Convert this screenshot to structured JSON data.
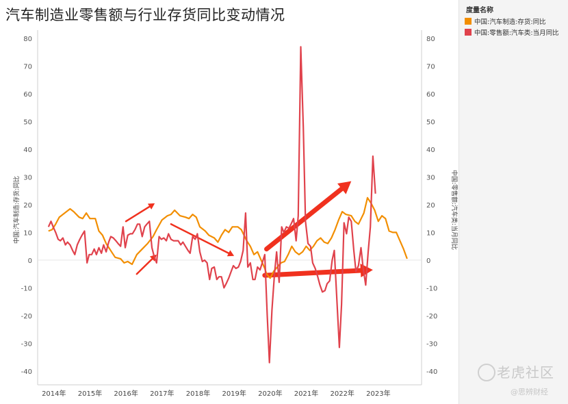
{
  "title": "汽车制造业零售额与行业存货同比变动情况",
  "legend": {
    "title": "度量名称",
    "items": [
      {
        "label": "中国:汽车制造:存货:同比",
        "color": "#F28E00"
      },
      {
        "label": "中国:零售额:汽车类:当月同比",
        "color": "#E0424C"
      }
    ]
  },
  "watermark": {
    "text": "老虎社区",
    "sub": "@思辨财经"
  },
  "chart_data": {
    "type": "line",
    "title": "汽车制造业零售额与行业存货同比变动情况",
    "ylabel_left": "中国:汽车制造:存货:同比",
    "ylabel_right": "中国:零售额:汽车类:当月同比",
    "ylim": [
      -45,
      83
    ],
    "yticks": [
      -40,
      -30,
      -20,
      -10,
      0,
      10,
      20,
      30,
      40,
      50,
      60,
      70,
      80
    ],
    "xlim": [
      2013.7,
      2024.35
    ],
    "xticks": [
      {
        "year": 2014,
        "label": "2014年"
      },
      {
        "year": 2015,
        "label": "2015年"
      },
      {
        "year": 2016,
        "label": "2016年"
      },
      {
        "year": 2017,
        "label": "2017年"
      },
      {
        "year": 2018,
        "label": "2018年"
      },
      {
        "year": 2019,
        "label": "2019年"
      },
      {
        "year": 2020,
        "label": "2020年"
      },
      {
        "year": 2021,
        "label": "2021年"
      },
      {
        "year": 2022,
        "label": "2022年"
      },
      {
        "year": 2023,
        "label": "2023年"
      }
    ],
    "grid": false,
    "legend_position": "right",
    "series": [
      {
        "name": "中国:汽车制造:存货:同比",
        "color": "#F28E00",
        "points": [
          [
            2014.0,
            10.5
          ],
          [
            2014.1,
            11
          ],
          [
            2014.2,
            13
          ],
          [
            2014.3,
            15.5
          ],
          [
            2014.45,
            17
          ],
          [
            2014.6,
            18.5
          ],
          [
            2014.7,
            17.5
          ],
          [
            2014.85,
            15.5
          ],
          [
            2014.95,
            15
          ],
          [
            2015.05,
            17
          ],
          [
            2015.15,
            15
          ],
          [
            2015.3,
            15
          ],
          [
            2015.4,
            10.5
          ],
          [
            2015.5,
            9
          ],
          [
            2015.6,
            6
          ],
          [
            2015.75,
            3
          ],
          [
            2015.85,
            1
          ],
          [
            2016.0,
            0.5
          ],
          [
            2016.1,
            -1
          ],
          [
            2016.2,
            -0.5
          ],
          [
            2016.32,
            -1.5
          ],
          [
            2016.45,
            2
          ],
          [
            2016.6,
            4
          ],
          [
            2016.75,
            6
          ],
          [
            2016.9,
            8.5
          ],
          [
            2017.0,
            11
          ],
          [
            2017.15,
            14.5
          ],
          [
            2017.3,
            16
          ],
          [
            2017.4,
            16.5
          ],
          [
            2017.5,
            18
          ],
          [
            2017.65,
            16
          ],
          [
            2017.8,
            15.5
          ],
          [
            2017.9,
            15
          ],
          [
            2018.0,
            16.5
          ],
          [
            2018.1,
            15.5
          ],
          [
            2018.2,
            12
          ],
          [
            2018.35,
            10.5
          ],
          [
            2018.45,
            9
          ],
          [
            2018.6,
            8
          ],
          [
            2018.7,
            6.5
          ],
          [
            2018.8,
            9
          ],
          [
            2018.9,
            11
          ],
          [
            2019.0,
            10
          ],
          [
            2019.1,
            12
          ],
          [
            2019.25,
            12
          ],
          [
            2019.35,
            11
          ],
          [
            2019.5,
            7
          ],
          [
            2019.6,
            5
          ],
          [
            2019.7,
            2
          ],
          [
            2019.8,
            3
          ],
          [
            2019.9,
            0
          ],
          [
            2020.0,
            -3
          ],
          [
            2020.05,
            -5
          ],
          [
            2020.15,
            -6.5
          ],
          [
            2020.25,
            -4
          ],
          [
            2020.35,
            -2.5
          ],
          [
            2020.45,
            -1
          ],
          [
            2020.55,
            -0.5
          ],
          [
            2020.65,
            2
          ],
          [
            2020.75,
            5
          ],
          [
            2020.85,
            3
          ],
          [
            2020.95,
            2
          ],
          [
            2021.05,
            3
          ],
          [
            2021.15,
            5
          ],
          [
            2021.25,
            3.5
          ],
          [
            2021.35,
            5
          ],
          [
            2021.45,
            7
          ],
          [
            2021.55,
            8
          ],
          [
            2021.65,
            6.5
          ],
          [
            2021.75,
            6
          ],
          [
            2021.85,
            8
          ],
          [
            2021.95,
            11
          ],
          [
            2022.05,
            14.5
          ],
          [
            2022.15,
            17.5
          ],
          [
            2022.25,
            16.5
          ],
          [
            2022.4,
            16
          ],
          [
            2022.5,
            14
          ],
          [
            2022.6,
            13
          ],
          [
            2022.75,
            17
          ],
          [
            2022.85,
            22.5
          ],
          [
            2022.95,
            20.5
          ],
          [
            2023.05,
            18
          ],
          [
            2023.15,
            14
          ],
          [
            2023.25,
            16
          ],
          [
            2023.35,
            15
          ],
          [
            2023.45,
            10.5
          ],
          [
            2023.55,
            10
          ],
          [
            2023.65,
            10
          ],
          [
            2023.75,
            7
          ],
          [
            2023.85,
            4
          ],
          [
            2023.95,
            0.5
          ]
        ]
      },
      {
        "name": "中国:零售额:汽车类:当月同比",
        "color": "#E0424C",
        "points": [
          [
            2014.0,
            12
          ],
          [
            2014.07,
            14
          ],
          [
            2014.13,
            12
          ],
          [
            2014.2,
            10
          ],
          [
            2014.27,
            7.5
          ],
          [
            2014.33,
            7
          ],
          [
            2014.4,
            8
          ],
          [
            2014.47,
            5.5
          ],
          [
            2014.53,
            6.5
          ],
          [
            2014.6,
            5.5
          ],
          [
            2014.67,
            3.5
          ],
          [
            2014.73,
            2
          ],
          [
            2014.8,
            5.5
          ],
          [
            2014.87,
            7.5
          ],
          [
            2014.93,
            9
          ],
          [
            2015.0,
            10.5
          ],
          [
            2015.07,
            -1
          ],
          [
            2015.13,
            2
          ],
          [
            2015.2,
            2
          ],
          [
            2015.27,
            4
          ],
          [
            2015.33,
            2
          ],
          [
            2015.4,
            4.5
          ],
          [
            2015.47,
            2.5
          ],
          [
            2015.53,
            5.5
          ],
          [
            2015.6,
            3
          ],
          [
            2015.67,
            6.5
          ],
          [
            2015.73,
            8.5
          ],
          [
            2015.8,
            8
          ],
          [
            2015.87,
            7
          ],
          [
            2015.93,
            6
          ],
          [
            2016.0,
            5
          ],
          [
            2016.07,
            12
          ],
          [
            2016.13,
            4.5
          ],
          [
            2016.2,
            9
          ],
          [
            2016.27,
            9.5
          ],
          [
            2016.33,
            9.5
          ],
          [
            2016.4,
            11
          ],
          [
            2016.47,
            13
          ],
          [
            2016.53,
            13
          ],
          [
            2016.6,
            8.5
          ],
          [
            2016.67,
            12
          ],
          [
            2016.73,
            13
          ],
          [
            2016.8,
            14
          ],
          [
            2016.87,
            4.5
          ],
          [
            2016.93,
            1.5
          ],
          [
            2017.0,
            -1
          ],
          [
            2017.07,
            8.5
          ],
          [
            2017.13,
            7.5
          ],
          [
            2017.2,
            8
          ],
          [
            2017.27,
            7
          ],
          [
            2017.33,
            9.5
          ],
          [
            2017.4,
            7.5
          ],
          [
            2017.47,
            7
          ],
          [
            2017.53,
            7
          ],
          [
            2017.6,
            7
          ],
          [
            2017.67,
            5.5
          ],
          [
            2017.73,
            6.5
          ],
          [
            2017.8,
            5
          ],
          [
            2017.87,
            3.5
          ],
          [
            2017.93,
            2.5
          ],
          [
            2018.0,
            8.5
          ],
          [
            2018.07,
            7.5
          ],
          [
            2018.13,
            9.5
          ],
          [
            2018.2,
            3
          ],
          [
            2018.27,
            -0.5
          ],
          [
            2018.33,
            0
          ],
          [
            2018.4,
            -1
          ],
          [
            2018.47,
            -7
          ],
          [
            2018.53,
            -3
          ],
          [
            2018.6,
            -2.5
          ],
          [
            2018.67,
            -7
          ],
          [
            2018.73,
            -6
          ],
          [
            2018.8,
            -6
          ],
          [
            2018.87,
            -10
          ],
          [
            2018.93,
            -8.5
          ],
          [
            2019.0,
            -6.5
          ],
          [
            2019.07,
            -4
          ],
          [
            2019.13,
            -2
          ],
          [
            2019.2,
            -3
          ],
          [
            2019.27,
            -2.5
          ],
          [
            2019.33,
            -0.5
          ],
          [
            2019.4,
            3.5
          ],
          [
            2019.47,
            17
          ],
          [
            2019.53,
            -2.5
          ],
          [
            2019.6,
            -1
          ],
          [
            2019.67,
            -7
          ],
          [
            2019.73,
            -7
          ],
          [
            2019.8,
            -2.5
          ],
          [
            2019.87,
            -3.5
          ],
          [
            2019.93,
            -1
          ],
          [
            2020.0,
            2
          ],
          [
            2020.07,
            -20
          ],
          [
            2020.13,
            -37
          ],
          [
            2020.2,
            -18
          ],
          [
            2020.27,
            -5
          ],
          [
            2020.33,
            3
          ],
          [
            2020.4,
            -8
          ],
          [
            2020.47,
            12
          ],
          [
            2020.53,
            10
          ],
          [
            2020.6,
            12
          ],
          [
            2020.67,
            11.5
          ],
          [
            2020.73,
            13
          ],
          [
            2020.8,
            15
          ],
          [
            2020.87,
            7
          ],
          [
            2020.93,
            16
          ],
          [
            2021.0,
            77
          ],
          [
            2021.07,
            48
          ],
          [
            2021.13,
            14
          ],
          [
            2021.2,
            6
          ],
          [
            2021.27,
            5
          ],
          [
            2021.33,
            -1
          ],
          [
            2021.4,
            -3
          ],
          [
            2021.47,
            -6
          ],
          [
            2021.53,
            -9
          ],
          [
            2021.6,
            -11.5
          ],
          [
            2021.67,
            -11
          ],
          [
            2021.73,
            -8.5
          ],
          [
            2021.8,
            -7.5
          ],
          [
            2021.87,
            0
          ],
          [
            2021.93,
            3.5
          ],
          [
            2022.0,
            -14
          ],
          [
            2022.07,
            -31.5
          ],
          [
            2022.13,
            -16
          ],
          [
            2022.2,
            13.5
          ],
          [
            2022.27,
            9.5
          ],
          [
            2022.33,
            15.5
          ],
          [
            2022.4,
            14
          ],
          [
            2022.47,
            3.5
          ],
          [
            2022.53,
            -4
          ],
          [
            2022.6,
            -2
          ],
          [
            2022.67,
            4.5
          ],
          [
            2022.73,
            -3
          ],
          [
            2022.8,
            -9
          ],
          [
            2022.87,
            3
          ],
          [
            2022.93,
            12
          ],
          [
            2023.0,
            37.5
          ],
          [
            2023.07,
            24
          ]
        ]
      }
    ]
  }
}
